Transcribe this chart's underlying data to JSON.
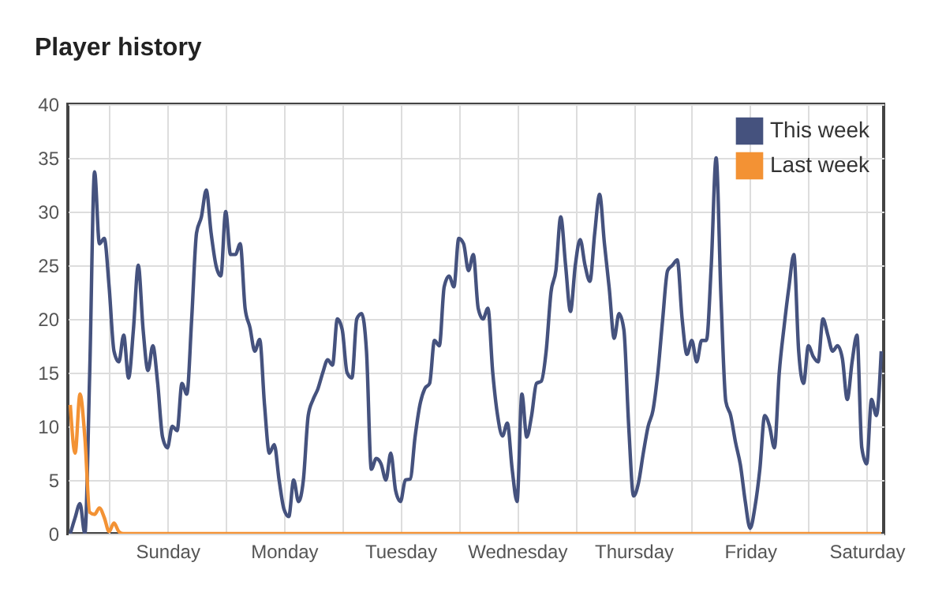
{
  "chart_data": {
    "type": "line",
    "title": "Player history",
    "categories": [
      null,
      null,
      null,
      null,
      null,
      null,
      null,
      null,
      null,
      null,
      null,
      null,
      null,
      null,
      null,
      null,
      null,
      null,
      null,
      null,
      "Sunday",
      null,
      null,
      null,
      null,
      null,
      null,
      null,
      null,
      null,
      null,
      null,
      null,
      null,
      null,
      null,
      null,
      null,
      null,
      null,
      null,
      null,
      null,
      null,
      "Monday",
      null,
      null,
      null,
      null,
      null,
      null,
      null,
      null,
      null,
      null,
      null,
      null,
      null,
      null,
      null,
      null,
      null,
      null,
      null,
      null,
      null,
      null,
      null,
      "Tuesday",
      null,
      null,
      null,
      null,
      null,
      null,
      null,
      null,
      null,
      null,
      null,
      null,
      null,
      null,
      null,
      null,
      null,
      null,
      null,
      null,
      null,
      null,
      null,
      "Wednesday",
      null,
      null,
      null,
      null,
      null,
      null,
      null,
      null,
      null,
      null,
      null,
      null,
      null,
      null,
      null,
      null,
      null,
      null,
      null,
      null,
      null,
      null,
      null,
      "Thursday",
      null,
      null,
      null,
      null,
      null,
      null,
      null,
      null,
      null,
      null,
      null,
      null,
      null,
      null,
      null,
      null,
      null,
      null,
      null,
      null,
      null,
      null,
      null,
      "Friday",
      null,
      null,
      null,
      null,
      null,
      null,
      null,
      null,
      null,
      null,
      null,
      null,
      null,
      null,
      null,
      null,
      null,
      null,
      null,
      null,
      null,
      null,
      null,
      "Saturday",
      null,
      null,
      null
    ],
    "ylim": [
      0,
      40
    ],
    "yticks": [
      0,
      5,
      10,
      15,
      20,
      25,
      30,
      35,
      40
    ],
    "grid": true,
    "legend": "top right",
    "marker": "none",
    "line_style": "solid",
    "series": [
      {
        "name": "This week",
        "color": "#45527e",
        "values": [
          0,
          1.5,
          2.8,
          0,
          15,
          33.7,
          27,
          27.5,
          23,
          17,
          16,
          18.5,
          14.5,
          19,
          25,
          19,
          15.2,
          17.5,
          14,
          9,
          8,
          10,
          9.6,
          14,
          13,
          20,
          28,
          29.5,
          32,
          28,
          25,
          24,
          30,
          26,
          26,
          27,
          21,
          19.2,
          17,
          18.1,
          12,
          7.5,
          8.3,
          5,
          2.3,
          1.6,
          5,
          3,
          5,
          11,
          12.5,
          13.5,
          15,
          16.2,
          15.7,
          20,
          19,
          15,
          14.5,
          20,
          20.5,
          17,
          6,
          7,
          6.5,
          5,
          7.5,
          4,
          3,
          5,
          5.1,
          9,
          12,
          13.5,
          14,
          18,
          17.5,
          23,
          24,
          23,
          27.5,
          27,
          24.5,
          26,
          21,
          20,
          21,
          15,
          11,
          9.1,
          10.3,
          6,
          3,
          13,
          9,
          11,
          14,
          14.2,
          17,
          22.5,
          24.5,
          29.5,
          25,
          20.7,
          25,
          27.4,
          25,
          23.5,
          28,
          31.6,
          27,
          22.8,
          18.2,
          20.5,
          19,
          10,
          3.5,
          4.7,
          7.5,
          10,
          11.5,
          15,
          20,
          24.5,
          25,
          25.5,
          20,
          16.7,
          18,
          16,
          18,
          18,
          25,
          35,
          22,
          12.3,
          11,
          8.5,
          6.4,
          3,
          0.5,
          2.5,
          6,
          11,
          10,
          8,
          15,
          19.3,
          23,
          26,
          17,
          14,
          17.5,
          16.5,
          16,
          20,
          18.5,
          17,
          17.5,
          16.3,
          12.5,
          16,
          18.5,
          8,
          6.5,
          12.5,
          11,
          17
        ]
      },
      {
        "name": "Last week",
        "color": "#f39234",
        "values": [
          12,
          7.5,
          13,
          9,
          2,
          1.8,
          2.4,
          1.5,
          0.2,
          1,
          0.2,
          0,
          0,
          0,
          0,
          0,
          0,
          0,
          0,
          0,
          0,
          0,
          0,
          0,
          0,
          0,
          0,
          0,
          0,
          0,
          0,
          0,
          0,
          0,
          0,
          0,
          0,
          0,
          0,
          0,
          0,
          0,
          0,
          0,
          0,
          0,
          0,
          0,
          0,
          0,
          0,
          0,
          0,
          0,
          0,
          0,
          0,
          0,
          0,
          0,
          0,
          0,
          0,
          0,
          0,
          0,
          0,
          0,
          0,
          0,
          0,
          0,
          0,
          0,
          0,
          0,
          0,
          0,
          0,
          0,
          0,
          0,
          0,
          0,
          0,
          0,
          0,
          0,
          0,
          0,
          0,
          0,
          0,
          0,
          0,
          0,
          0,
          0,
          0,
          0,
          0,
          0,
          0,
          0,
          0,
          0,
          0,
          0,
          0,
          0,
          0,
          0,
          0,
          0,
          0,
          0,
          0,
          0,
          0,
          0,
          0,
          0,
          0,
          0,
          0,
          0,
          0,
          0,
          0,
          0,
          0,
          0,
          0,
          0,
          0,
          0,
          0,
          0,
          0,
          0,
          0,
          0,
          0,
          0,
          0,
          0,
          0,
          0,
          0,
          0,
          0,
          0,
          0,
          0,
          0,
          0,
          0,
          0,
          0,
          0,
          0,
          0,
          0,
          0,
          0,
          0,
          0,
          0
        ]
      }
    ]
  }
}
